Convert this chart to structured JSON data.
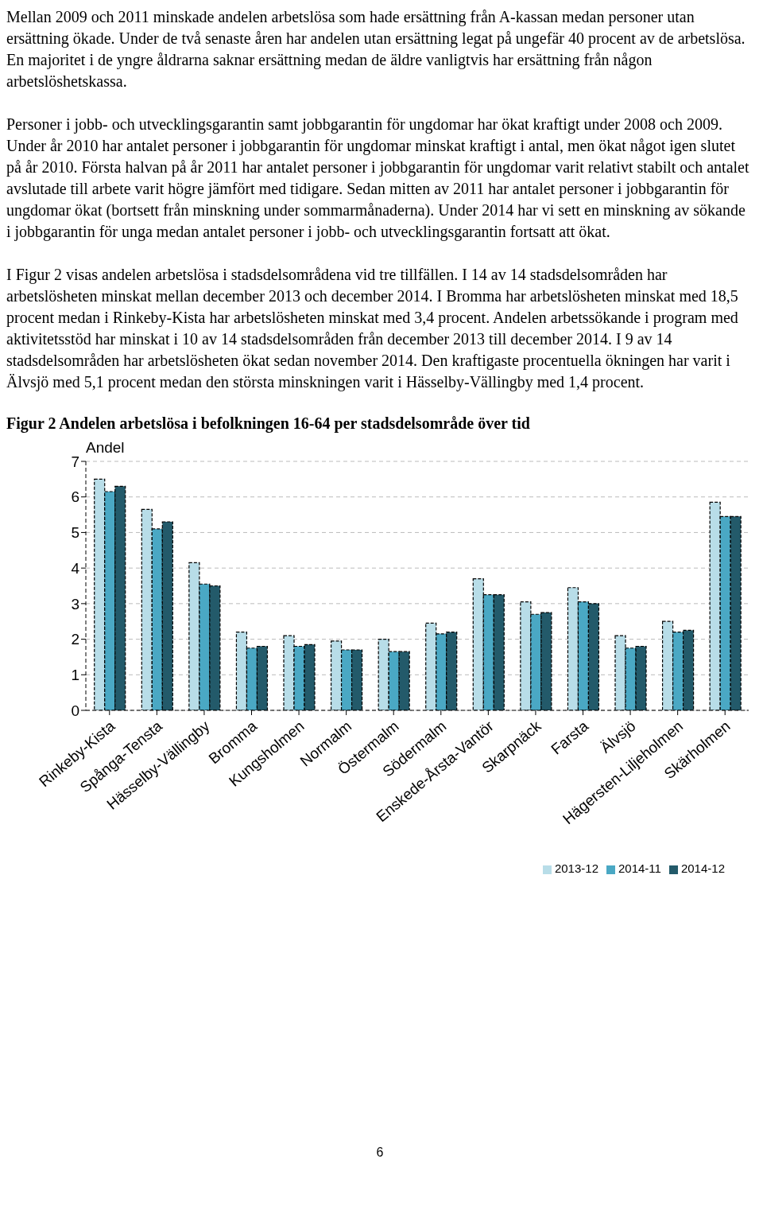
{
  "chart_data": {
    "type": "bar",
    "title": "Figur 2 Andelen arbetslösa i befolkningen 16-64 per stadsdelsområde över tid",
    "ylabel": "Andel",
    "annotations": [
      "Mellan 2009 och 2011 minskade andelen arbetslösa som hade ersättning från A-kassan medan personer utan ersättning ökade. Under de två senaste åren har andelen utan ersättning legat på ungefär 40 procent av de arbetslösa. En majoritet i de yngre åldrarna saknar ersättning medan de äldre vanligtvis har ersättning från någon arbetslöshetskassa.",
      "Personer i jobb- och utvecklingsgarantin samt jobbgarantin för ungdomar har ökat kraftigt under 2008 och 2009. Under år 2010 har antalet personer i jobbgarantin för ungdomar minskat kraftigt i antal, men ökat något igen slutet på år 2010. Första halvan på år 2011 har antalet personer i jobbgarantin för ungdomar varit relativt stabilt och antalet avslutade till arbete varit högre jämfört med tidigare. Sedan mitten av 2011 har antalet personer i jobbgarantin för ungdomar ökat (bortsett från minskning under sommarmånaderna). Under 2014 har vi sett en minskning av sökande i jobbgarantin för unga medan antalet personer i jobb- och utvecklingsgarantin fortsatt att ökat.",
      "I Figur 2 visas andelen arbetslösa i stadsdelsområdena vid tre tillfällen. I 14 av 14 stadsdelsområden har arbetslösheten minskat mellan december 2013 och december 2014. I Bromma har arbetslösheten minskat med 18,5 procent medan i Rinkeby-Kista har arbetslösheten minskat med 3,4 procent. Andelen arbetssökande i program med aktivitetsstöd har minskat i 10 av 14 stadsdelsområden från december 2013 till december 2014. I 9 av 14 stadsdelsområden har arbetslösheten ökat sedan november 2014. Den kraftigaste procentuella ökningen har varit i Älvsjö med 5,1 procent medan den största minskningen varit i Hässelby-Vällingby med 1,4 procent.",
      "6"
    ],
    "categories": [
      "Rinkeby-Kista",
      "Spånga-Tensta",
      "Hässelby-Vällingby",
      "Bromma",
      "Kungsholmen",
      "Normalm",
      "Östermalm",
      "Södermalm",
      "Enskede-Årsta-Vantör",
      "Skarpnäck",
      "Farsta",
      "Älvsjö",
      "Hägersten-Liljeholmen",
      "Skärholmen"
    ],
    "series": [
      {
        "name": "2013-12",
        "color": "#b8dde8",
        "values": [
          6.5,
          5.65,
          4.15,
          2.2,
          2.1,
          1.95,
          2.0,
          2.45,
          3.7,
          3.05,
          3.45,
          2.1,
          2.5,
          5.85
        ]
      },
      {
        "name": "2014-11",
        "color": "#4aa8c4",
        "values": [
          6.15,
          5.1,
          3.55,
          1.75,
          1.8,
          1.7,
          1.65,
          2.15,
          3.25,
          2.7,
          3.05,
          1.75,
          2.2,
          5.45
        ]
      },
      {
        "name": "2014-12",
        "color": "#235a6a",
        "values": [
          6.3,
          5.3,
          3.5,
          1.8,
          1.85,
          1.7,
          1.65,
          2.2,
          3.25,
          2.75,
          3.0,
          1.8,
          2.25,
          5.45
        ]
      }
    ],
    "ylim": [
      0,
      7
    ],
    "yticks": [
      0,
      1,
      2,
      3,
      4,
      5,
      6,
      7
    ],
    "grid": "y",
    "legend": "bottom right"
  }
}
